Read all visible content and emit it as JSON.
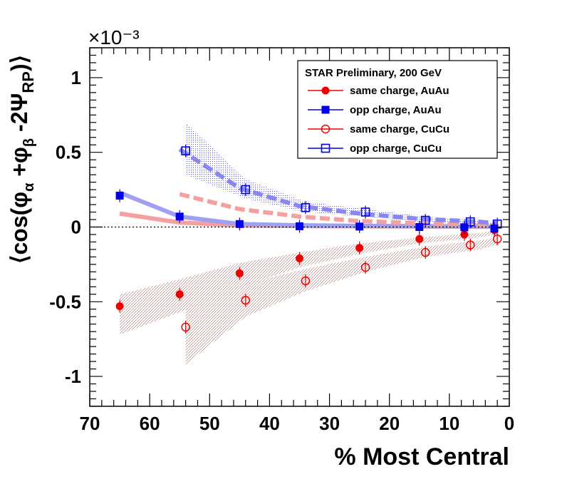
{
  "chart_data": {
    "type": "scatter",
    "title": "",
    "exponent_label": "×10⁻³",
    "xlabel": "% Most Central",
    "ylabel_parts": {
      "pre": "⟨cos(φ",
      "sub_a": "α",
      "mid": " +φ",
      "sub_b": "β",
      "post": " -2Ψ",
      "sub_rp": "RP",
      "close": ")⟩"
    },
    "xlim": [
      70,
      0
    ],
    "ylim": [
      -1.2,
      1.2
    ],
    "x_reversed": true,
    "grid": false,
    "legend_position": "top-right",
    "legend_title": "STAR Preliminary,  200 GeV",
    "x_ticks": [
      70,
      60,
      50,
      40,
      30,
      20,
      10,
      0
    ],
    "y_ticks": [
      -1,
      -0.5,
      0,
      0.5,
      1
    ],
    "y_tick_labels": [
      "-1",
      "-0.5",
      "0",
      "0.5",
      "1"
    ],
    "series": [
      {
        "name": "same charge, AuAu",
        "color": "#ee0000",
        "marker": "filled-circle",
        "x": [
          65,
          55,
          45,
          35,
          25,
          15,
          7.5,
          2.5
        ],
        "y": [
          -0.53,
          -0.45,
          -0.31,
          -0.21,
          -0.14,
          -0.08,
          -0.05,
          -0.02
        ]
      },
      {
        "name": "opp charge, AuAu",
        "color": "#0000ee",
        "marker": "filled-square",
        "x": [
          65,
          55,
          45,
          35,
          25,
          15,
          7.5,
          2.5
        ],
        "y": [
          0.21,
          0.07,
          0.02,
          0.005,
          0.003,
          0.0,
          -0.002,
          -0.01
        ]
      },
      {
        "name": "same charge, CuCu",
        "color": "#ee0000",
        "marker": "open-circle",
        "x": [
          54,
          44,
          34,
          24,
          14,
          6.5,
          2
        ],
        "y": [
          -0.67,
          -0.49,
          -0.36,
          -0.27,
          -0.17,
          -0.12,
          -0.08
        ]
      },
      {
        "name": "opp charge, CuCu",
        "color": "#0000ee",
        "marker": "open-square",
        "x": [
          54,
          44,
          34,
          24,
          14,
          6.5,
          2
        ],
        "y": [
          0.51,
          0.25,
          0.13,
          0.1,
          0.045,
          0.035,
          0.02
        ]
      }
    ],
    "theory_bands": [
      {
        "style": "solid",
        "color": "#f4a0a0",
        "x": [
          65,
          55,
          45,
          35,
          25,
          15,
          5,
          2
        ],
        "y": [
          0.09,
          0.03,
          0.01,
          0.006,
          0.004,
          0.003,
          0.002,
          0.002
        ]
      },
      {
        "style": "solid",
        "color": "#a0a0f0",
        "x": [
          65,
          55,
          45,
          35,
          25,
          15,
          5,
          2
        ],
        "y": [
          0.23,
          0.07,
          0.02,
          0.012,
          0.008,
          0.006,
          0.004,
          0.003
        ]
      },
      {
        "style": "dashed",
        "color": "#f4a0a0",
        "x": [
          55,
          45,
          35,
          25,
          15,
          5,
          2
        ],
        "y": [
          0.22,
          0.12,
          0.07,
          0.04,
          0.025,
          0.015,
          0.01
        ]
      },
      {
        "style": "dashed",
        "color": "#8888ee",
        "x": [
          55,
          45,
          35,
          25,
          15,
          5,
          2
        ],
        "y": [
          0.52,
          0.26,
          0.14,
          0.09,
          0.055,
          0.035,
          0.025
        ]
      }
    ],
    "systematic_bands": [
      {
        "color": "#ff4444",
        "x": [
          65,
          55,
          45,
          35,
          25,
          15,
          5,
          2
        ],
        "y_lo": [
          -0.72,
          -0.57,
          -0.4,
          -0.27,
          -0.18,
          -0.11,
          -0.07,
          -0.05
        ],
        "y_hi": [
          -0.45,
          -0.35,
          -0.24,
          -0.17,
          -0.11,
          -0.07,
          -0.04,
          -0.02
        ]
      },
      {
        "color": "#ff4444",
        "x": [
          54,
          44,
          34,
          24,
          14,
          5,
          2
        ],
        "y_lo": [
          -0.92,
          -0.6,
          -0.43,
          -0.3,
          -0.2,
          -0.15,
          -0.12
        ],
        "y_hi": [
          -0.55,
          -0.38,
          -0.28,
          -0.2,
          -0.13,
          -0.09,
          -0.07
        ]
      },
      {
        "color": "#5555ee",
        "x": [
          54,
          44,
          34,
          24,
          14,
          5,
          2
        ],
        "y_lo": [
          0.35,
          0.19,
          0.1,
          0.07,
          0.03,
          0.015,
          0.01
        ],
        "y_hi": [
          0.7,
          0.32,
          0.17,
          0.12,
          0.07,
          0.045,
          0.03
        ]
      }
    ]
  }
}
